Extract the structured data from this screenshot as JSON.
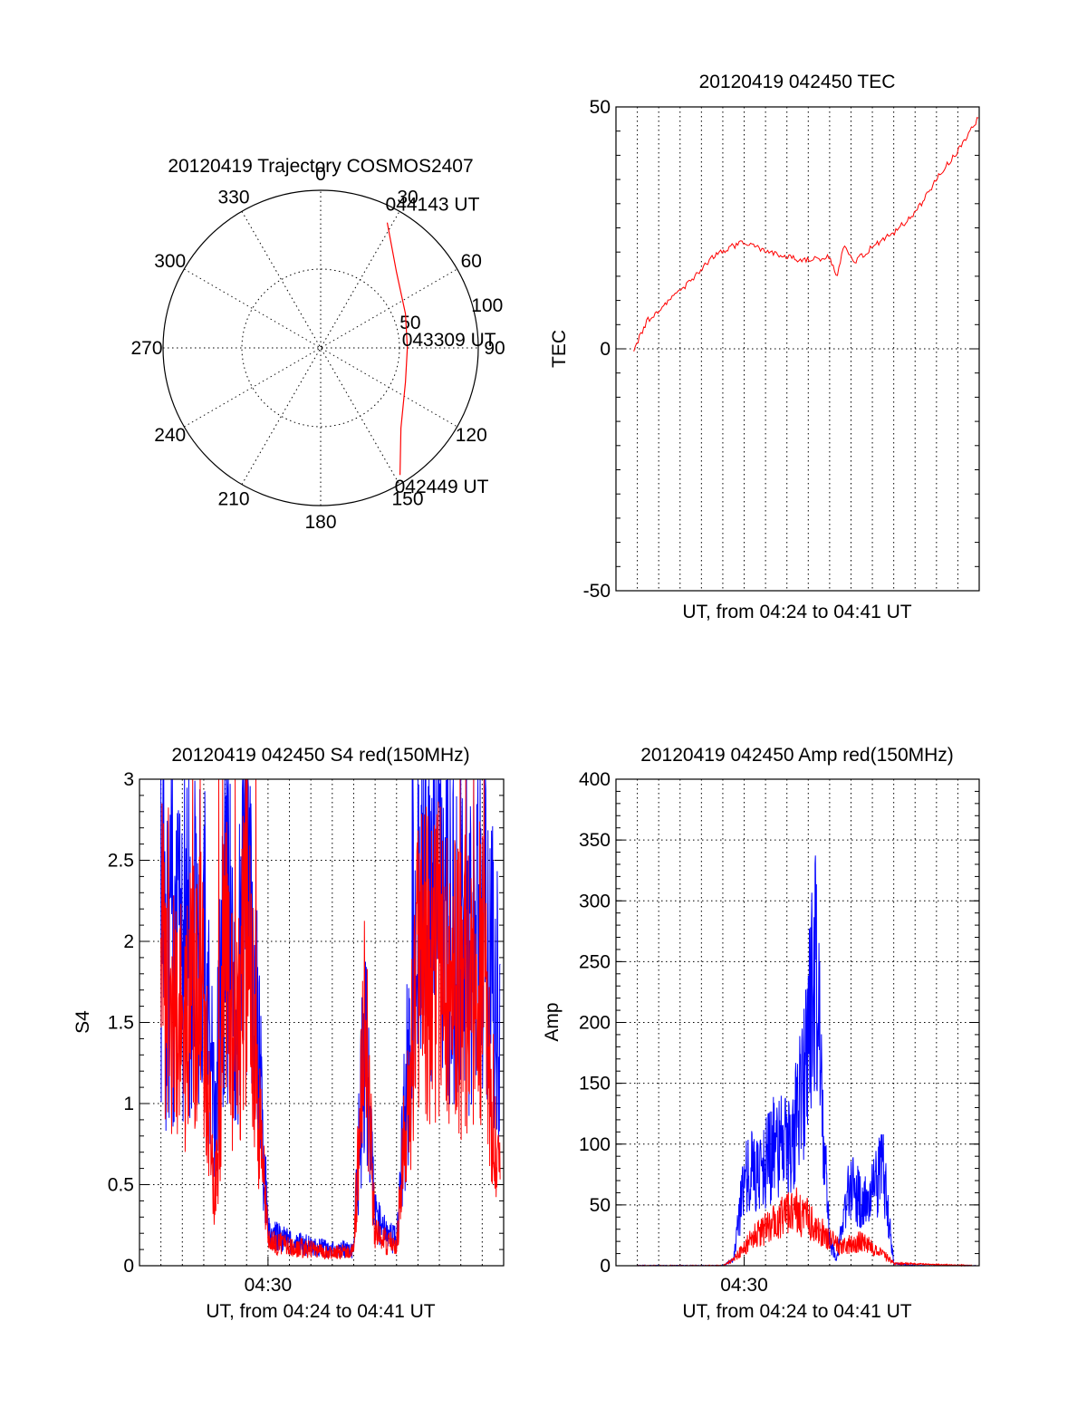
{
  "colors": {
    "red": "#ff0000",
    "blue": "#0000ff"
  },
  "chart_data": [
    {
      "type": "polar",
      "title": "20120419 Trajectory COSMOS2407",
      "angle_labels": [
        "0",
        "30",
        "60",
        "90",
        "120",
        "150",
        "180",
        "210",
        "240",
        "270",
        "300",
        "330"
      ],
      "radius_labels": [
        "50",
        "100"
      ],
      "rlim": [
        0,
        100
      ],
      "grid": true,
      "series": [
        {
          "color": "#ff0000",
          "points": [
            [
              148,
              95
            ],
            [
              135,
              72
            ],
            [
              112,
              58
            ],
            [
              90,
              55
            ],
            [
              68,
              58
            ],
            [
              45,
              68
            ],
            [
              28,
              90
            ]
          ]
        }
      ],
      "annotations": [
        {
          "text": "044143 UT",
          "at": [
            28,
            90
          ]
        },
        {
          "text": "043309 UT",
          "at": [
            90,
            55
          ]
        },
        {
          "text": "042449 UT",
          "at": [
            148,
            95
          ]
        }
      ]
    },
    {
      "type": "line",
      "title": "20120419 042450 TEC",
      "xlabel": "UT, from 04:24 to 04:41 UT",
      "ylabel": "TEC",
      "xlim": [
        "04:24",
        "04:41"
      ],
      "ylim": [
        -50,
        50
      ],
      "yticks": [
        "-50",
        "0",
        "50"
      ],
      "xticks": [],
      "grid": true,
      "series": [
        {
          "color": "#ff0000",
          "x": [
            "04:24:50",
            "04:25:30",
            "04:26:30",
            "04:27:30",
            "04:28:30",
            "04:29:20",
            "04:30:00",
            "04:30:30",
            "04:31:30",
            "04:32:30",
            "04:33:30",
            "04:34:00",
            "04:34:20",
            "04:34:40",
            "04:35:10",
            "04:36:00",
            "04:37:00",
            "04:38:00",
            "04:39:00",
            "04:40:00",
            "04:41:00"
          ],
          "values": [
            0,
            6,
            10,
            14,
            19,
            21,
            22,
            21,
            19.5,
            18.5,
            18.5,
            19,
            15,
            21,
            18,
            21,
            24,
            28,
            35,
            41,
            48
          ]
        }
      ]
    },
    {
      "type": "line",
      "title": "20120419 042450 S4 red(150MHz)",
      "xlabel": "UT, from 04:24 to 04:41 UT",
      "ylabel": "S4",
      "xlim": [
        "04:24",
        "04:41"
      ],
      "ylim": [
        0,
        3
      ],
      "yticks": [
        "0",
        "0.5",
        "1",
        "1.5",
        "2",
        "2.5",
        "3"
      ],
      "xticks": [
        "04:30"
      ],
      "grid": true,
      "series": [
        {
          "color": "#0000ff",
          "x": [
            "04:25:00",
            "04:26:00",
            "04:27:00",
            "04:27:30",
            "04:28:00",
            "04:28:30",
            "04:29:00",
            "04:29:30",
            "04:30:00",
            "04:31:00",
            "04:32:00",
            "04:33:00",
            "04:34:00",
            "04:34:30",
            "04:35:00",
            "04:35:30",
            "04:36:00",
            "04:37:00",
            "04:38:00",
            "04:39:00",
            "04:40:00",
            "04:40:50"
          ],
          "values": [
            1.8,
            1.9,
            2.0,
            0.9,
            2.2,
            1.6,
            2.4,
            1.4,
            0.2,
            0.15,
            0.12,
            0.1,
            0.1,
            1.4,
            0.3,
            0.2,
            0.15,
            2.2,
            2.3,
            2.0,
            2.1,
            1.5
          ]
        },
        {
          "color": "#ff0000",
          "x": [
            "04:25:00",
            "04:26:00",
            "04:27:00",
            "04:27:30",
            "04:28:00",
            "04:28:30",
            "04:29:00",
            "04:29:30",
            "04:30:00",
            "04:31:00",
            "04:32:00",
            "04:33:00",
            "04:34:00",
            "04:34:30",
            "04:35:00",
            "04:35:30",
            "04:36:00",
            "04:37:00",
            "04:38:00",
            "04:39:00",
            "04:40:00",
            "04:40:50"
          ],
          "values": [
            2.0,
            1.5,
            1.7,
            0.3,
            1.9,
            1.2,
            2.1,
            1.1,
            0.15,
            0.12,
            0.1,
            0.08,
            0.09,
            1.6,
            0.2,
            0.15,
            0.12,
            1.8,
            1.9,
            1.7,
            1.8,
            0.5
          ]
        }
      ]
    },
    {
      "type": "line",
      "title": "20120419 042450 Amp red(150MHz)",
      "xlabel": "UT, from 04:24 to 04:41 UT",
      "ylabel": "Amp",
      "xlim": [
        "04:24",
        "04:41"
      ],
      "ylim": [
        0,
        400
      ],
      "yticks": [
        "0",
        "50",
        "100",
        "150",
        "200",
        "250",
        "300",
        "350",
        "400"
      ],
      "xticks": [
        "04:30"
      ],
      "grid": true,
      "series": [
        {
          "color": "#0000ff",
          "x": [
            "04:25:00",
            "04:29:00",
            "04:29:30",
            "04:30:00",
            "04:30:30",
            "04:31:00",
            "04:31:30",
            "04:32:00",
            "04:32:30",
            "04:33:00",
            "04:33:20",
            "04:33:40",
            "04:34:00",
            "04:34:20",
            "04:34:40",
            "04:35:00",
            "04:35:30",
            "04:36:00",
            "04:36:30",
            "04:37:00",
            "04:38:00",
            "04:40:50"
          ],
          "values": [
            0,
            0,
            5,
            70,
            80,
            85,
            100,
            95,
            120,
            180,
            260,
            120,
            20,
            5,
            40,
            70,
            50,
            60,
            80,
            2,
            0,
            0
          ]
        },
        {
          "color": "#ff0000",
          "x": [
            "04:25:00",
            "04:29:00",
            "04:29:30",
            "04:30:00",
            "04:30:30",
            "04:31:00",
            "04:31:30",
            "04:32:00",
            "04:32:30",
            "04:33:00",
            "04:33:30",
            "04:34:00",
            "04:34:30",
            "04:35:00",
            "04:35:30",
            "04:36:00",
            "04:36:30",
            "04:37:00",
            "04:40:50"
          ],
          "values": [
            0,
            0,
            5,
            15,
            25,
            30,
            38,
            42,
            45,
            38,
            30,
            22,
            15,
            18,
            20,
            15,
            10,
            2,
            0
          ]
        }
      ]
    }
  ]
}
